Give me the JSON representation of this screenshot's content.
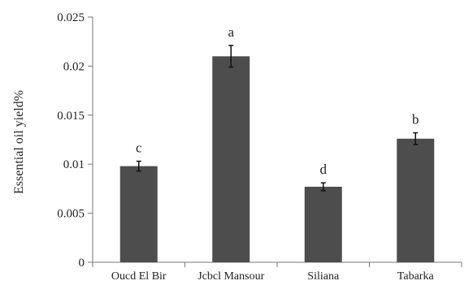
{
  "chart_data": {
    "type": "bar",
    "ylabel": "Essential oil yield%",
    "xlabel": "",
    "ylim": [
      0,
      0.025
    ],
    "yticks": [
      0,
      0.005,
      0.01,
      0.015,
      0.02,
      0.025
    ],
    "ytick_labels": [
      "0",
      "0.005",
      "0.01",
      "0.015",
      "0.02",
      "0.025"
    ],
    "categories": [
      "Oucd El Bir",
      "Jcbcl Mansour",
      "Siliana",
      "Tabarka"
    ],
    "values": [
      0.0098,
      0.021,
      0.0077,
      0.0126
    ],
    "errors": [
      0.0005,
      0.0011,
      0.0004,
      0.0006
    ],
    "letters": [
      "c",
      "a",
      "d",
      "b"
    ],
    "grid": false,
    "colors": {
      "bar": "#4d4d4d",
      "axis": "#777777",
      "error": "#111111"
    }
  }
}
